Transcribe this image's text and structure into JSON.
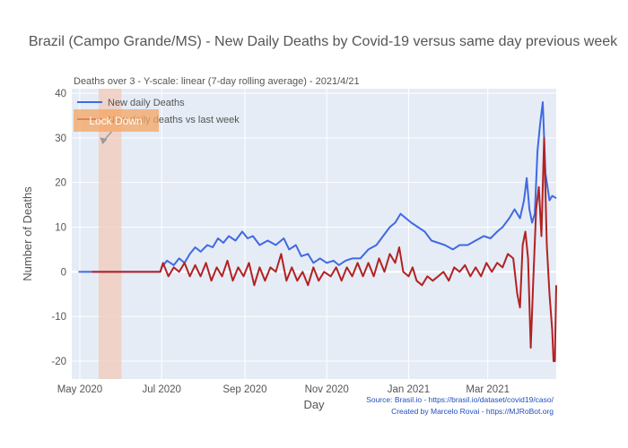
{
  "chart_data": {
    "type": "line",
    "title": "Brazil (Campo Grande/MS) - New Daily Deaths by Covid-19 versus same day previous week",
    "subtitle": "Deaths over 3 - Y-scale: linear (7-day rolling average) - 2021/4/21",
    "xlabel": "Day",
    "ylabel": "Number of Deaths",
    "ylim": [
      -24,
      41
    ],
    "xlim": [
      "2020-04-25",
      "2021-04-21"
    ],
    "yticks": [
      40,
      30,
      20,
      10,
      0,
      -10,
      -20
    ],
    "xticks": [
      {
        "date": "2020-05-01",
        "label": "May 2020"
      },
      {
        "date": "2020-07-01",
        "label": "Jul 2020"
      },
      {
        "date": "2020-09-01",
        "label": "Sep 2020"
      },
      {
        "date": "2020-11-01",
        "label": "Nov 2020"
      },
      {
        "date": "2021-01-01",
        "label": "Jan 2021"
      },
      {
        "date": "2021-03-01",
        "label": "Mar 2021"
      }
    ],
    "grid": true,
    "legend_position": "top-left",
    "shaded_region": {
      "start": "2020-05-15",
      "end": "2020-06-01",
      "color": "#f2c9b8"
    },
    "annotation": {
      "text": "Lock Down",
      "date": "2020-05-18",
      "value": 28.5
    },
    "series": [
      {
        "name": "New daily Deaths",
        "color": "#4169e1",
        "points": [
          [
            "2020-04-30",
            0
          ],
          [
            "2020-05-10",
            0
          ],
          [
            "2020-06-01",
            0
          ],
          [
            "2020-06-20",
            0
          ],
          [
            "2020-06-30",
            0
          ],
          [
            "2020-07-01",
            1
          ],
          [
            "2020-07-05",
            2.5
          ],
          [
            "2020-07-10",
            1.5
          ],
          [
            "2020-07-14",
            3
          ],
          [
            "2020-07-18",
            2
          ],
          [
            "2020-07-22",
            4
          ],
          [
            "2020-07-26",
            5.5
          ],
          [
            "2020-07-30",
            4.5
          ],
          [
            "2020-08-04",
            6
          ],
          [
            "2020-08-08",
            5.5
          ],
          [
            "2020-08-12",
            7.5
          ],
          [
            "2020-08-16",
            6.5
          ],
          [
            "2020-08-20",
            8
          ],
          [
            "2020-08-25",
            7
          ],
          [
            "2020-08-30",
            9
          ],
          [
            "2020-09-03",
            7.5
          ],
          [
            "2020-09-07",
            8
          ],
          [
            "2020-09-12",
            6
          ],
          [
            "2020-09-18",
            7
          ],
          [
            "2020-09-24",
            6
          ],
          [
            "2020-09-30",
            7.5
          ],
          [
            "2020-10-04",
            5
          ],
          [
            "2020-10-09",
            6
          ],
          [
            "2020-10-13",
            3.5
          ],
          [
            "2020-10-18",
            4
          ],
          [
            "2020-10-22",
            2
          ],
          [
            "2020-10-27",
            3
          ],
          [
            "2020-11-01",
            2
          ],
          [
            "2020-11-06",
            2.5
          ],
          [
            "2020-11-10",
            1.5
          ],
          [
            "2020-11-15",
            2.5
          ],
          [
            "2020-11-20",
            3
          ],
          [
            "2020-11-26",
            3
          ],
          [
            "2020-12-02",
            5
          ],
          [
            "2020-12-08",
            6
          ],
          [
            "2020-12-13",
            8
          ],
          [
            "2020-12-18",
            10
          ],
          [
            "2020-12-22",
            11
          ],
          [
            "2020-12-26",
            13
          ],
          [
            "2020-12-30",
            12
          ],
          [
            "2021-01-03",
            11
          ],
          [
            "2021-01-08",
            10
          ],
          [
            "2021-01-13",
            9
          ],
          [
            "2021-01-18",
            7
          ],
          [
            "2021-01-23",
            6.5
          ],
          [
            "2021-01-28",
            6
          ],
          [
            "2021-02-03",
            5
          ],
          [
            "2021-02-08",
            6
          ],
          [
            "2021-02-14",
            6
          ],
          [
            "2021-02-20",
            7
          ],
          [
            "2021-02-26",
            8
          ],
          [
            "2021-03-03",
            7.5
          ],
          [
            "2021-03-08",
            9
          ],
          [
            "2021-03-12",
            10
          ],
          [
            "2021-03-17",
            12
          ],
          [
            "2021-03-21",
            14
          ],
          [
            "2021-03-25",
            12
          ],
          [
            "2021-03-28",
            16
          ],
          [
            "2021-03-30",
            21
          ],
          [
            "2021-04-01",
            14
          ],
          [
            "2021-04-03",
            11
          ],
          [
            "2021-04-05",
            13
          ],
          [
            "2021-04-07",
            27
          ],
          [
            "2021-04-09",
            33
          ],
          [
            "2021-04-11",
            38
          ],
          [
            "2021-04-13",
            22
          ],
          [
            "2021-04-16",
            16
          ],
          [
            "2021-04-18",
            17
          ],
          [
            "2021-04-21",
            16.5
          ]
        ]
      },
      {
        "name": "New daily deaths vs last week",
        "color": "#b22222",
        "points": [
          [
            "2020-05-10",
            0
          ],
          [
            "2020-06-01",
            0
          ],
          [
            "2020-06-30",
            0
          ],
          [
            "2020-07-02",
            2
          ],
          [
            "2020-07-06",
            -1
          ],
          [
            "2020-07-10",
            1
          ],
          [
            "2020-07-14",
            0
          ],
          [
            "2020-07-18",
            2
          ],
          [
            "2020-07-22",
            -1
          ],
          [
            "2020-07-26",
            1.5
          ],
          [
            "2020-07-30",
            -1
          ],
          [
            "2020-08-03",
            2
          ],
          [
            "2020-08-07",
            -2
          ],
          [
            "2020-08-11",
            1
          ],
          [
            "2020-08-15",
            -1
          ],
          [
            "2020-08-19",
            2.5
          ],
          [
            "2020-08-23",
            -2
          ],
          [
            "2020-08-27",
            1
          ],
          [
            "2020-08-31",
            -1
          ],
          [
            "2020-09-04",
            2
          ],
          [
            "2020-09-08",
            -3
          ],
          [
            "2020-09-12",
            1
          ],
          [
            "2020-09-16",
            -2
          ],
          [
            "2020-09-20",
            1
          ],
          [
            "2020-09-24",
            0
          ],
          [
            "2020-09-28",
            4
          ],
          [
            "2020-10-02",
            -2
          ],
          [
            "2020-10-06",
            1
          ],
          [
            "2020-10-10",
            -2
          ],
          [
            "2020-10-14",
            0
          ],
          [
            "2020-10-18",
            -3
          ],
          [
            "2020-10-22",
            1
          ],
          [
            "2020-10-26",
            -2
          ],
          [
            "2020-10-30",
            0
          ],
          [
            "2020-11-04",
            -1
          ],
          [
            "2020-11-08",
            1
          ],
          [
            "2020-11-12",
            -2
          ],
          [
            "2020-11-16",
            1
          ],
          [
            "2020-11-20",
            -1
          ],
          [
            "2020-11-24",
            2
          ],
          [
            "2020-11-28",
            -1
          ],
          [
            "2020-12-02",
            2
          ],
          [
            "2020-12-06",
            -1
          ],
          [
            "2020-12-10",
            3
          ],
          [
            "2020-12-14",
            0
          ],
          [
            "2020-12-18",
            4
          ],
          [
            "2020-12-22",
            2
          ],
          [
            "2020-12-25",
            5.5
          ],
          [
            "2020-12-28",
            0
          ],
          [
            "2021-01-01",
            -1
          ],
          [
            "2021-01-04",
            1
          ],
          [
            "2021-01-07",
            -2
          ],
          [
            "2021-01-11",
            -3
          ],
          [
            "2021-01-15",
            -1
          ],
          [
            "2021-01-19",
            -2
          ],
          [
            "2021-01-23",
            -1
          ],
          [
            "2021-01-27",
            0
          ],
          [
            "2021-01-31",
            -2
          ],
          [
            "2021-02-04",
            1
          ],
          [
            "2021-02-08",
            0
          ],
          [
            "2021-02-12",
            1.5
          ],
          [
            "2021-02-16",
            -1
          ],
          [
            "2021-02-20",
            1
          ],
          [
            "2021-02-24",
            -1
          ],
          [
            "2021-02-28",
            2
          ],
          [
            "2021-03-04",
            0
          ],
          [
            "2021-03-08",
            2
          ],
          [
            "2021-03-12",
            1
          ],
          [
            "2021-03-16",
            4
          ],
          [
            "2021-03-20",
            3
          ],
          [
            "2021-03-23",
            -5
          ],
          [
            "2021-03-25",
            -8
          ],
          [
            "2021-03-27",
            6
          ],
          [
            "2021-03-29",
            9
          ],
          [
            "2021-03-31",
            3
          ],
          [
            "2021-04-02",
            -17
          ],
          [
            "2021-04-04",
            -1
          ],
          [
            "2021-04-06",
            14
          ],
          [
            "2021-04-08",
            19
          ],
          [
            "2021-04-10",
            8
          ],
          [
            "2021-04-12",
            30
          ],
          [
            "2021-04-14",
            6
          ],
          [
            "2021-04-16",
            -5
          ],
          [
            "2021-04-18",
            -13
          ],
          [
            "2021-04-19",
            -20
          ],
          [
            "2021-04-20",
            -20
          ],
          [
            "2021-04-21",
            -3
          ]
        ]
      }
    ]
  },
  "legend": {
    "items": [
      {
        "label": "New daily Deaths",
        "color": "#4169e1"
      },
      {
        "label": "New daily deaths vs last week",
        "color": "#b22222"
      }
    ]
  },
  "footer": {
    "source": "Source: Brasil.io - https://brasil.io/dataset/covid19/caso/",
    "credit": "Created by Marcelo Rovai - https://MJRoBot.org"
  },
  "colors": {
    "plot_bg": "#e5ecf6",
    "grid": "#ffffff",
    "annotation_bg": "#f4a460"
  }
}
